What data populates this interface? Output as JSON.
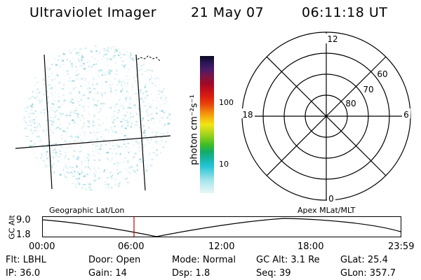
{
  "header": {
    "instrument": "Ultraviolet Imager",
    "date": "21 May 07",
    "time": "06:11:18 UT"
  },
  "colorbar": {
    "unit_label": "photon cm⁻²s⁻¹",
    "ticks": [
      "100",
      "10"
    ],
    "colors": [
      "#e8f6f6",
      "#c6eef0",
      "#9fe3ea",
      "#5fd2dc",
      "#22c4d4",
      "#18b4a4",
      "#12ac6a",
      "#3cbc28",
      "#7ccc1c",
      "#bcd81a",
      "#f0e614",
      "#f7b410",
      "#f27e0c",
      "#e8440c",
      "#dc2010",
      "#c4101a",
      "#a00828",
      "#7a1644",
      "#4c1c66",
      "#2a1656",
      "#0c0820"
    ]
  },
  "polar": {
    "mlt_labels": {
      "top": "12",
      "bottom": "0",
      "left": "18",
      "right": "6"
    },
    "lat_labels": [
      "60",
      "70",
      "80"
    ]
  },
  "map_labels": {
    "left": "Geographic Lat/Lon",
    "right": "Apex MLat/MLT"
  },
  "altitude_plot": {
    "ylabel": "GC Alt",
    "yticks": [
      "9.0",
      "1.8"
    ],
    "xticks": [
      "00:00",
      "06:00",
      "12:00",
      "18:00",
      "23:59"
    ],
    "current_time_marker": "06:11",
    "marker_color": "#cc0000"
  },
  "status": {
    "filter": "Flt: LBHL",
    "door": "Door: Open",
    "mode": "Mode: Normal",
    "gc_alt": "GC Alt: 3.1 Re",
    "glat": "GLat:  25.4",
    "ip": "IP: 36.0",
    "gain": "Gain: 14",
    "dsp": "Dsp:    1.8",
    "seq": "Seq: 39",
    "glon": "GLon: 357.7"
  }
}
